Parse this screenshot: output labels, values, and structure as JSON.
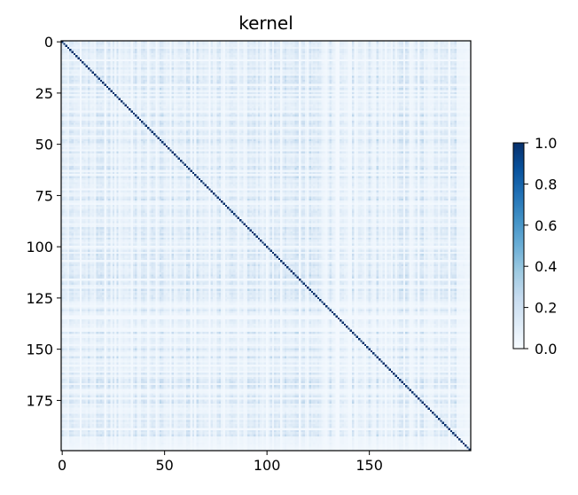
{
  "chart_data": {
    "type": "heatmap",
    "title": "kernel",
    "xlabel": "",
    "ylabel": "",
    "shape": [
      200,
      200
    ],
    "x_ticks": [
      0,
      50,
      100,
      150
    ],
    "y_ticks": [
      0,
      25,
      50,
      75,
      100,
      125,
      150,
      175
    ],
    "xlim": [
      -0.5,
      199.5
    ],
    "ylim": [
      199.5,
      -0.5
    ],
    "diagonal_value": 1.0,
    "off_diagonal_typical": 0.05,
    "off_diagonal_max": 0.3,
    "colormap": "Blues",
    "color_low": "#f7fbff",
    "color_high": "#08306b",
    "colorbar": {
      "range": [
        0.0,
        1.0
      ],
      "ticks": [
        "0.0",
        "0.2",
        "0.4",
        "0.6",
        "0.8",
        "1.0"
      ]
    },
    "grid": false,
    "legend": "none"
  }
}
